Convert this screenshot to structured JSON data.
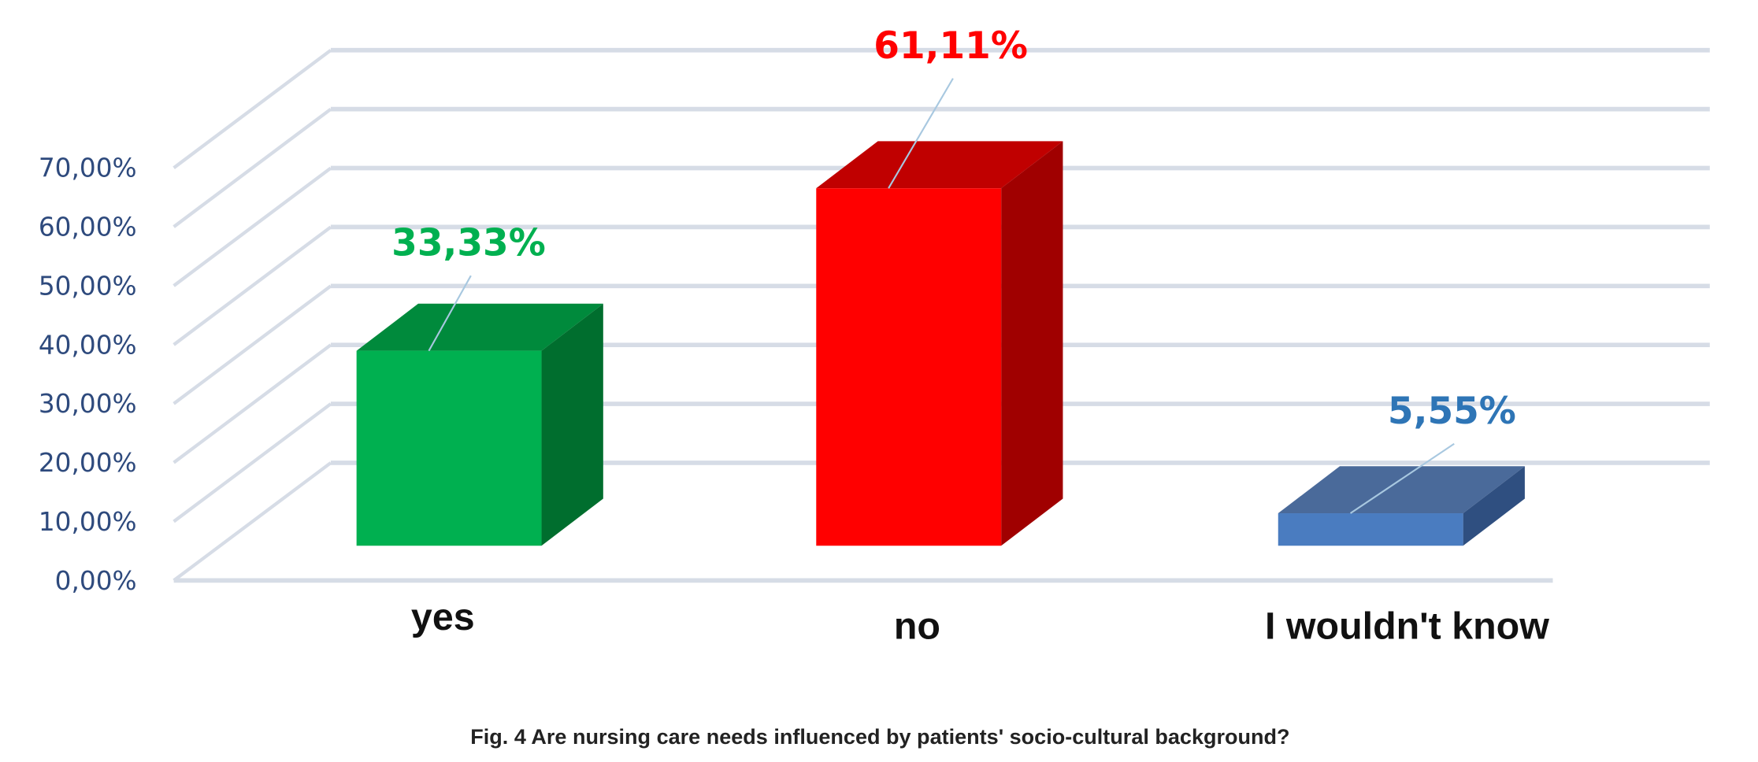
{
  "chart_data": {
    "type": "bar",
    "style": "3d-column",
    "title": "Fig. 4  Are nursing care needs influenced by patients' socio-cultural background?",
    "xlabel": "",
    "ylabel": "",
    "categories": [
      "yes",
      "no",
      "I wouldn't know"
    ],
    "values": [
      33.33,
      61.11,
      5.55
    ],
    "data_labels": [
      "33,33%",
      "61,11%",
      "5,55%"
    ],
    "ylim": [
      0,
      80
    ],
    "yticks": [
      0,
      10,
      20,
      30,
      40,
      50,
      60,
      70
    ],
    "ytick_labels": [
      "0,00%",
      "10,00%",
      "20,00%",
      "30,00%",
      "40,00%",
      "50,00%",
      "60,00%",
      "70,00%"
    ],
    "grid": true,
    "legend": "none",
    "colors": {
      "bars": [
        {
          "front": "#00b050",
          "top": "#008a3c",
          "side": "#006e2e",
          "label": "#00b050"
        },
        {
          "front": "#ff0000",
          "top": "#c00000",
          "side": "#a00000",
          "label": "#ff0000"
        },
        {
          "front": "#4a7cc0",
          "top": "#4a6a9a",
          "side": "#2f4f80",
          "label": "#2e75b6"
        }
      ],
      "axis_text": "#2e4a7d",
      "grid": "#d6dce6"
    }
  }
}
